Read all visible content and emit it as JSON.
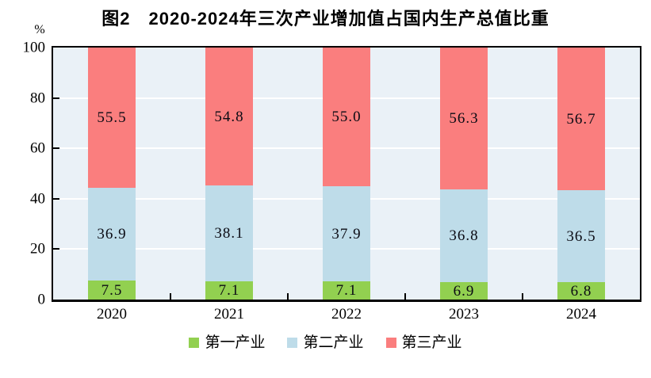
{
  "chart_data": {
    "type": "bar",
    "stacked": true,
    "title": "图2　2020-2024年三次产业增加值占国内生产总值比重",
    "ylabel_unit": "%",
    "categories": [
      "2020",
      "2021",
      "2022",
      "2023",
      "2024"
    ],
    "series": [
      {
        "name": "第一产业",
        "key": "primary-industry",
        "color": "#92d050",
        "values": [
          7.5,
          7.1,
          7.1,
          6.9,
          6.8
        ]
      },
      {
        "name": "第二产业",
        "key": "secondary-industry",
        "color": "#bedce9",
        "values": [
          36.9,
          38.1,
          37.9,
          36.8,
          36.5
        ]
      },
      {
        "name": "第三产业",
        "key": "tertiary-industry",
        "color": "#fa7e7e",
        "values": [
          55.5,
          54.8,
          55.0,
          56.3,
          56.7
        ]
      }
    ],
    "ylim": [
      0,
      100
    ],
    "yticks": [
      0,
      20,
      40,
      60,
      80,
      100
    ],
    "grid": true,
    "grid_color": "#ffffff",
    "plot_background": "#eaf1f7",
    "axis_color": "#000000",
    "legend_position": "bottom"
  }
}
